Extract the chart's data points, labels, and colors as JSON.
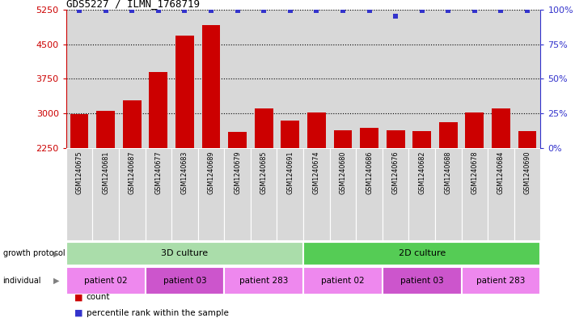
{
  "title": "GDS5227 / ILMN_1768719",
  "samples": [
    "GSM1240675",
    "GSM1240681",
    "GSM1240687",
    "GSM1240677",
    "GSM1240683",
    "GSM1240689",
    "GSM1240679",
    "GSM1240685",
    "GSM1240691",
    "GSM1240674",
    "GSM1240680",
    "GSM1240686",
    "GSM1240676",
    "GSM1240682",
    "GSM1240688",
    "GSM1240678",
    "GSM1240684",
    "GSM1240690"
  ],
  "counts": [
    2980,
    3060,
    3280,
    3900,
    4680,
    4920,
    2590,
    3100,
    2850,
    3010,
    2640,
    2680,
    2640,
    2620,
    2800,
    3010,
    3100,
    2620
  ],
  "percentiles": [
    99,
    99,
    99,
    99,
    99,
    99,
    99,
    99,
    99,
    99,
    99,
    99,
    95,
    99,
    99,
    99,
    99,
    99
  ],
  "ylim_left": [
    2250,
    5250
  ],
  "ylim_right": [
    0,
    100
  ],
  "yticks_left": [
    2250,
    3000,
    3750,
    4500,
    5250
  ],
  "yticks_right": [
    0,
    25,
    50,
    75,
    100
  ],
  "bar_color": "#cc0000",
  "dot_color": "#3333cc",
  "col_bg_even": "#d4d4d4",
  "col_bg_odd": "#d4d4d4",
  "growth_protocol_groups": [
    {
      "label": "3D culture",
      "start": 0,
      "end": 9,
      "color": "#aaddaa"
    },
    {
      "label": "2D culture",
      "start": 9,
      "end": 18,
      "color": "#55cc55"
    }
  ],
  "individual_groups": [
    {
      "label": "patient 02",
      "start": 0,
      "end": 3,
      "color": "#ee88ee"
    },
    {
      "label": "patient 03",
      "start": 3,
      "end": 6,
      "color": "#cc55cc"
    },
    {
      "label": "patient 283",
      "start": 6,
      "end": 9,
      "color": "#ee88ee"
    },
    {
      "label": "patient 02",
      "start": 9,
      "end": 12,
      "color": "#ee88ee"
    },
    {
      "label": "patient 03",
      "start": 12,
      "end": 15,
      "color": "#cc55cc"
    },
    {
      "label": "patient 283",
      "start": 15,
      "end": 18,
      "color": "#ee88ee"
    }
  ],
  "background_color": "#ffffff",
  "legend_items": [
    {
      "label": "count",
      "color": "#cc0000"
    },
    {
      "label": "percentile rank within the sample",
      "color": "#3333cc"
    }
  ]
}
